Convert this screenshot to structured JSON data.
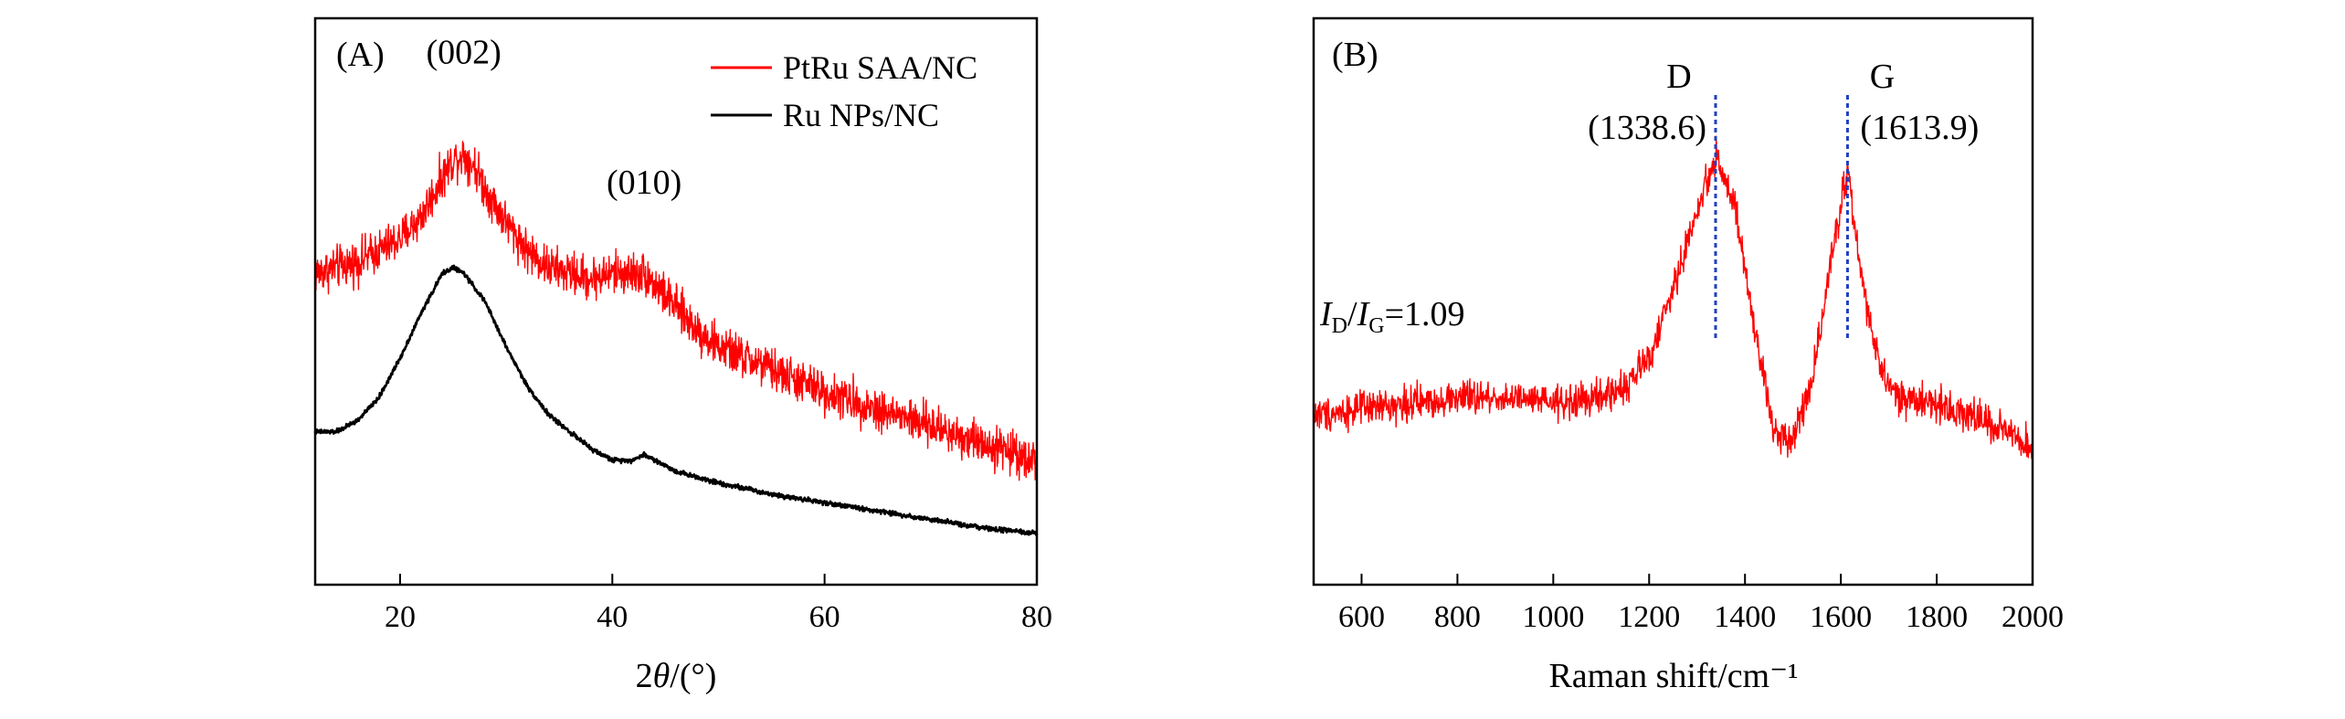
{
  "chart_data": [
    {
      "type": "line",
      "panel_label": "(A)",
      "xlabel_prefix": "2",
      "xlabel_var": "θ",
      "xlabel_unit": "/(°)",
      "ylabel": "",
      "xlim": [
        12,
        80
      ],
      "ylim": [
        0,
        1
      ],
      "y_ticks_shown": false,
      "grid": false,
      "legend_position": "top-right",
      "x_ticks": [
        20,
        40,
        60,
        80
      ],
      "x_tick_labels": [
        "20",
        "40",
        "60",
        "80"
      ],
      "annotations": [
        {
          "text": "(002)",
          "x": 26,
          "y": 0.92
        },
        {
          "text": "(010)",
          "x": 43,
          "y": 0.69
        }
      ],
      "series": [
        {
          "name": "PtRu SAA/NC",
          "color": "#ff0000",
          "noise": 0.055,
          "x": [
            12,
            14,
            16,
            18,
            20,
            22,
            24,
            25,
            26,
            27,
            28,
            30,
            32,
            34,
            36,
            38,
            40,
            42,
            43,
            44,
            46,
            48,
            50,
            55,
            60,
            65,
            70,
            75,
            80
          ],
          "y": [
            0.55,
            0.56,
            0.57,
            0.59,
            0.61,
            0.65,
            0.72,
            0.75,
            0.76,
            0.74,
            0.7,
            0.64,
            0.59,
            0.56,
            0.55,
            0.54,
            0.55,
            0.55,
            0.55,
            0.53,
            0.49,
            0.45,
            0.42,
            0.38,
            0.34,
            0.31,
            0.28,
            0.25,
            0.22
          ]
        },
        {
          "name": "Ru NPs/NC",
          "color": "#000000",
          "noise": 0.006,
          "x": [
            12,
            14,
            16,
            18,
            20,
            22,
            24,
            25,
            26,
            28,
            30,
            32,
            34,
            36,
            38,
            40,
            42,
            43,
            44,
            46,
            50,
            55,
            60,
            65,
            70,
            75,
            80
          ],
          "y": [
            0.27,
            0.27,
            0.29,
            0.33,
            0.4,
            0.48,
            0.55,
            0.56,
            0.55,
            0.5,
            0.42,
            0.35,
            0.3,
            0.27,
            0.24,
            0.22,
            0.22,
            0.23,
            0.22,
            0.2,
            0.18,
            0.16,
            0.145,
            0.13,
            0.115,
            0.1,
            0.09
          ]
        }
      ]
    },
    {
      "type": "line",
      "panel_label": "(B)",
      "xlabel": "Raman shift/cm⁻¹",
      "ylabel": "",
      "xlim": [
        500,
        2000
      ],
      "ylim": [
        0,
        1
      ],
      "y_ticks_shown": false,
      "grid": false,
      "x_ticks": [
        600,
        800,
        1000,
        1200,
        1400,
        1600,
        1800,
        2000
      ],
      "x_tick_labels": [
        "600",
        "800",
        "1000",
        "1200",
        "1400",
        "1600",
        "1800",
        "2000"
      ],
      "ratio_annotation": {
        "i1": "I",
        "s1": "D",
        "sep": "/",
        "i2": "I",
        "s2": "G",
        "value": "=1.09"
      },
      "peaks": [
        {
          "label": "D",
          "position_label": "(1338.6)",
          "x": 1338.6,
          "dash_color": "#1f3fbf"
        },
        {
          "label": "G",
          "position_label": "(1613.9)",
          "x": 1613.9,
          "dash_color": "#1f3fbf"
        }
      ],
      "series": [
        {
          "name": "",
          "color": "#ff0000",
          "noise": 0.045,
          "x": [
            500,
            600,
            700,
            800,
            900,
            1000,
            1100,
            1150,
            1200,
            1250,
            1300,
            1340,
            1380,
            1420,
            1460,
            1500,
            1540,
            1580,
            1614,
            1640,
            1680,
            1720,
            1800,
            1900,
            2000
          ],
          "y": [
            0.3,
            0.31,
            0.32,
            0.33,
            0.33,
            0.32,
            0.33,
            0.35,
            0.4,
            0.52,
            0.66,
            0.76,
            0.66,
            0.45,
            0.27,
            0.26,
            0.36,
            0.58,
            0.73,
            0.56,
            0.38,
            0.33,
            0.32,
            0.29,
            0.24
          ]
        }
      ]
    }
  ]
}
